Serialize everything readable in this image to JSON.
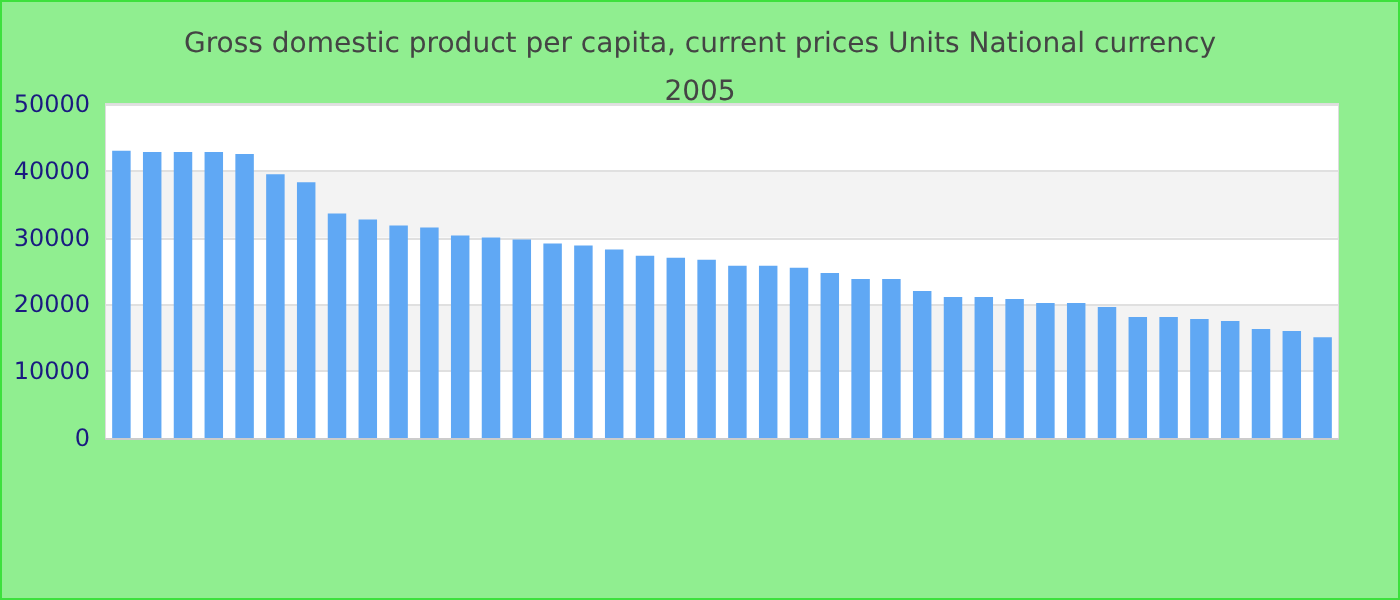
{
  "chart_data": {
    "type": "bar",
    "title": "Gross domestic product per capita, current prices Units National currency\n2005",
    "categories": [
      null,
      null,
      null,
      null,
      null,
      null,
      null,
      null,
      null,
      null,
      null,
      null,
      null,
      null,
      null,
      null,
      null,
      null,
      null,
      null,
      null,
      null,
      null,
      null,
      null,
      null,
      null,
      null,
      null,
      null,
      null,
      null,
      null,
      null,
      null,
      null,
      null,
      null,
      null,
      null
    ],
    "values": [
      43000,
      42800,
      42800,
      42800,
      42500,
      39500,
      38300,
      33600,
      32700,
      31800,
      31500,
      30300,
      30000,
      29700,
      29100,
      28800,
      28200,
      27300,
      27000,
      26700,
      25800,
      25800,
      25500,
      24700,
      23800,
      23800,
      22000,
      21100,
      21100,
      20800,
      20200,
      20200,
      19600,
      18100,
      18100,
      17800,
      17500,
      16300,
      16000,
      15100
    ],
    "color": "#60a8f4",
    "ylim": [
      0,
      50000
    ],
    "yticks": [
      0,
      10000,
      20000,
      30000,
      40000,
      50000
    ],
    "grid": true
  }
}
